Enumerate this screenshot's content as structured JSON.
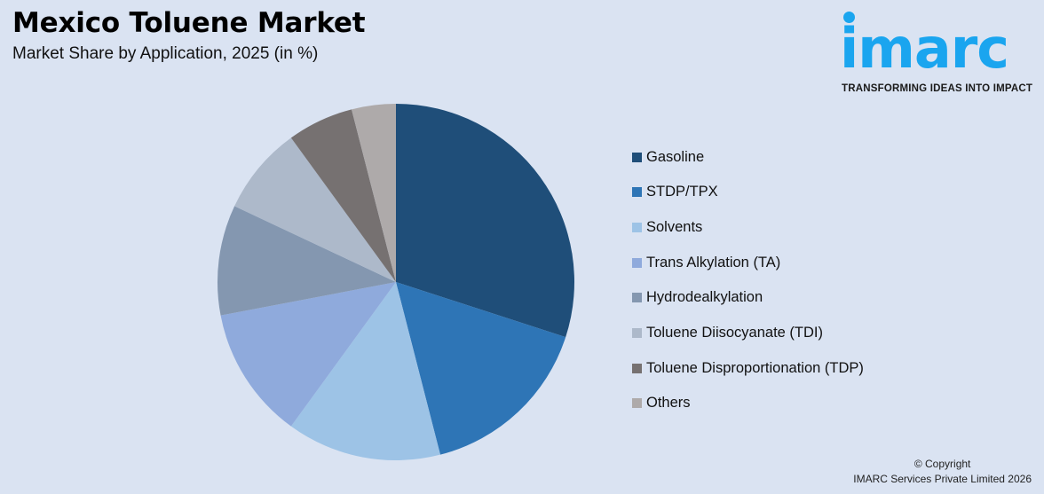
{
  "header": {
    "title": "Mexico Toluene Market",
    "subtitle": "Market Share by Application, 2025 (in %)"
  },
  "logo": {
    "wordmark": "imarc",
    "tagline": "TRANSFORMING IDEAS INTO IMPACT",
    "color": "#1aa5ef"
  },
  "footer": {
    "line1": "© Copyright",
    "line2": "IMARC Services Private Limited 2026"
  },
  "chart_data": {
    "type": "pie",
    "title": "Mexico Toluene Market",
    "subtitle": "Market Share by Application, 2025 (in %)",
    "categories": [
      "Gasoline",
      "STDP/TPX",
      "Solvents",
      "Trans Alkylation (TA)",
      "Hydrodealkylation",
      "Toluene Diisocyanate (TDI)",
      "Toluene Disproportionation (TDP)",
      "Others"
    ],
    "values": [
      30,
      16,
      14,
      12,
      10,
      8,
      6,
      4
    ],
    "colors": [
      "#1f4e79",
      "#2e75b6",
      "#9dc3e6",
      "#8faadc",
      "#8497b0",
      "#adb9ca",
      "#767171",
      "#aeaaaa"
    ],
    "start_angle": "12 o'clock, clockwise",
    "legend_position": "right",
    "data_labels": false
  }
}
